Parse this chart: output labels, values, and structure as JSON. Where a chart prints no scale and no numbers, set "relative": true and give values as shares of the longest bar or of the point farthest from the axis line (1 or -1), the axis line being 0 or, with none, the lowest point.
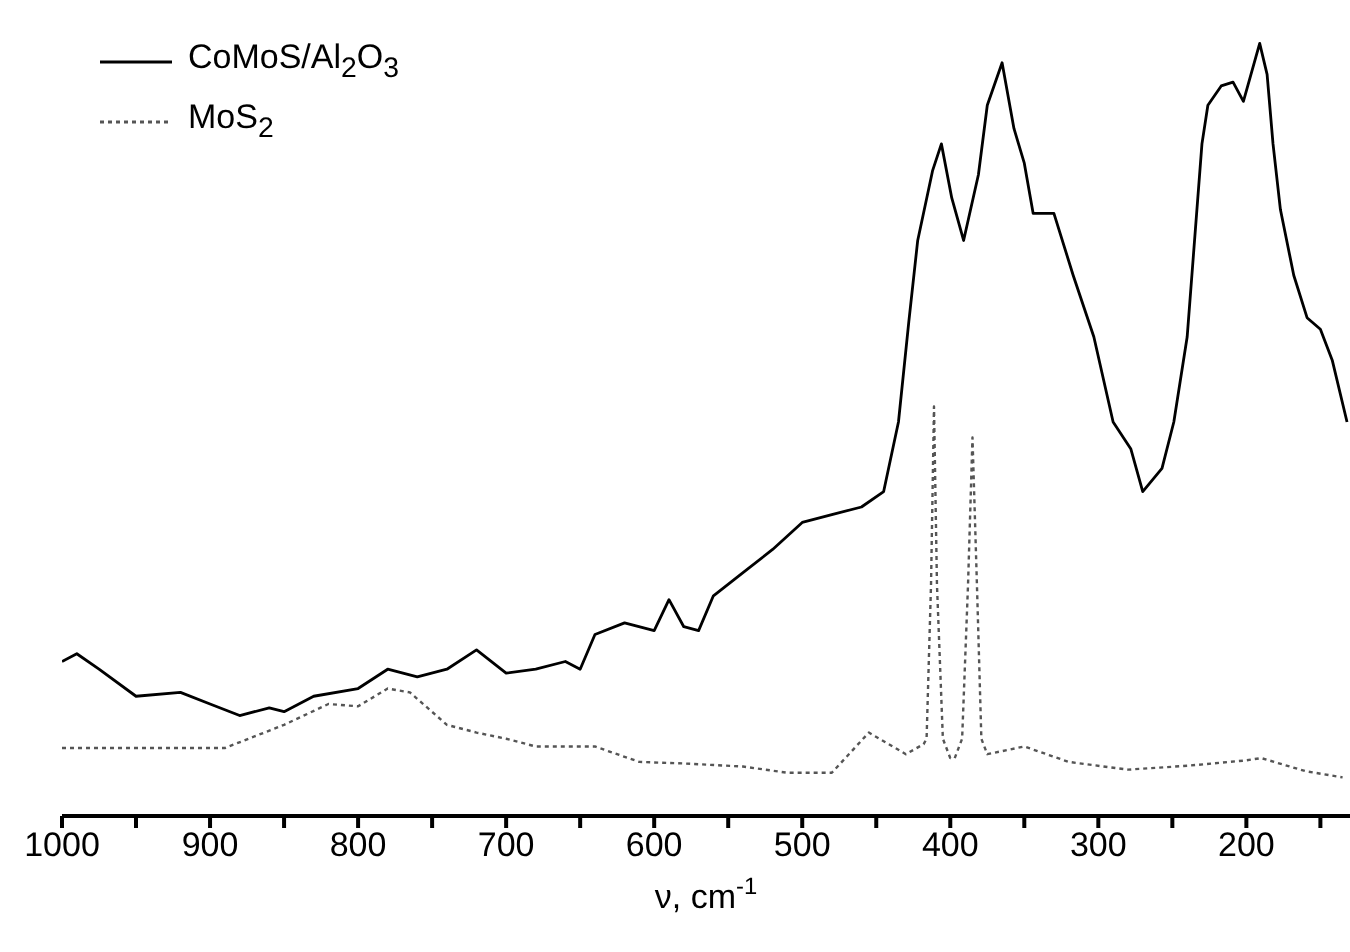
{
  "chart_data": {
    "type": "line",
    "xlabel": "ν, cm$^{-1}$",
    "relative": true,
    "legend": "top left",
    "grid": false,
    "marker": "none",
    "xlim": [
      1000,
      130
    ],
    "xticks": [
      1000,
      {
        "value": 950,
        "label": null
      },
      900,
      {
        "value": 850,
        "label": null
      },
      800,
      {
        "value": 750,
        "label": null
      },
      700,
      {
        "value": 650,
        "label": null
      },
      600,
      {
        "value": 550,
        "label": null
      },
      500,
      {
        "value": 450,
        "label": null
      },
      400,
      {
        "value": 350,
        "label": null
      },
      300,
      {
        "value": 250,
        "label": null
      },
      200,
      {
        "value": 150,
        "label": null
      }
    ],
    "series": [
      {
        "name": "CoMoS/Al$_{2}$O$_{3}$",
        "color": "#000000",
        "line_style": "solid",
        "x": [
          1000,
          990,
          975,
          950,
          920,
          900,
          880,
          860,
          850,
          830,
          800,
          780,
          760,
          740,
          720,
          700,
          680,
          660,
          650,
          640,
          620,
          600,
          590,
          580,
          570,
          560,
          540,
          520,
          500,
          480,
          460,
          445,
          435,
          428,
          422,
          412,
          406,
          399,
          391,
          381,
          375,
          365,
          357,
          350,
          344,
          330,
          317,
          303,
          290,
          278,
          270,
          257,
          249,
          240,
          230,
          226,
          217,
          209,
          202,
          191,
          186,
          182,
          177,
          168,
          159,
          150,
          142,
          132
        ],
        "values": [
          0.2,
          0.21,
          0.19,
          0.155,
          0.16,
          0.145,
          0.13,
          0.14,
          0.135,
          0.155,
          0.165,
          0.19,
          0.18,
          0.19,
          0.215,
          0.185,
          0.19,
          0.2,
          0.19,
          0.235,
          0.25,
          0.24,
          0.28,
          0.245,
          0.24,
          0.285,
          0.315,
          0.345,
          0.38,
          0.39,
          0.4,
          0.42,
          0.51,
          0.64,
          0.745,
          0.835,
          0.87,
          0.8,
          0.745,
          0.83,
          0.92,
          0.975,
          0.89,
          0.845,
          0.78,
          0.78,
          0.7,
          0.62,
          0.51,
          0.475,
          0.42,
          0.45,
          0.51,
          0.62,
          0.87,
          0.92,
          0.945,
          0.95,
          0.925,
          1.0,
          0.96,
          0.87,
          0.785,
          0.7,
          0.645,
          0.63,
          0.59,
          0.51
        ]
      },
      {
        "name": "MoS$_{2}$",
        "color": "#555555",
        "line_style": "dotted",
        "x": [
          1000,
          950,
          890,
          850,
          820,
          800,
          780,
          765,
          740,
          720,
          700,
          680,
          640,
          610,
          580,
          540,
          510,
          480,
          455,
          430,
          418,
          416,
          413,
          411,
          409,
          405,
          400,
          397,
          392,
          388,
          385,
          382,
          379,
          375,
          350,
          320,
          280,
          240,
          200,
          190,
          160,
          135
        ],
        "values": [
          0.088,
          0.088,
          0.088,
          0.118,
          0.145,
          0.142,
          0.165,
          0.16,
          0.118,
          0.108,
          0.1,
          0.09,
          0.09,
          0.07,
          0.068,
          0.064,
          0.056,
          0.056,
          0.108,
          0.08,
          0.093,
          0.1,
          0.3,
          0.53,
          0.3,
          0.1,
          0.075,
          0.075,
          0.1,
          0.3,
          0.49,
          0.3,
          0.1,
          0.08,
          0.09,
          0.07,
          0.06,
          0.065,
          0.072,
          0.075,
          0.058,
          0.05
        ]
      }
    ]
  }
}
